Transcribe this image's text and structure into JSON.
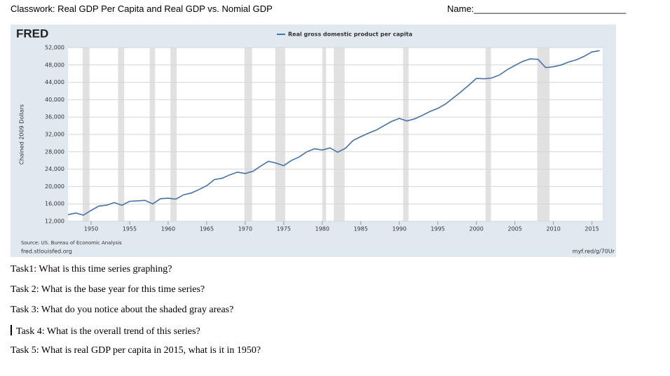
{
  "header": {
    "title": "Classwork: Real GDP Per Capita and Real GDP vs. Nomial GDP",
    "name_label": "Name:______________________________"
  },
  "chart_data": {
    "type": "line",
    "logo": "FRED",
    "ylabel": "Chained 2009 Dollars",
    "source": "Source: US. Bureau of Economic Analysis",
    "site": "fred.stlouisfed.org",
    "link": "myf.red/g/70Ur",
    "x": [
      1947,
      1948,
      1949,
      1950,
      1951,
      1952,
      1953,
      1954,
      1955,
      1956,
      1957,
      1958,
      1959,
      1960,
      1961,
      1962,
      1963,
      1964,
      1965,
      1966,
      1967,
      1968,
      1969,
      1970,
      1971,
      1972,
      1973,
      1974,
      1975,
      1976,
      1977,
      1978,
      1979,
      1980,
      1981,
      1982,
      1983,
      1984,
      1985,
      1986,
      1987,
      1988,
      1989,
      1990,
      1991,
      1992,
      1993,
      1994,
      1995,
      1996,
      1997,
      1998,
      1999,
      2000,
      2001,
      2002,
      2003,
      2004,
      2005,
      2006,
      2007,
      2008,
      2009,
      2010,
      2011,
      2012,
      2013,
      2014,
      2015,
      2016
    ],
    "series": [
      {
        "name": "Real gross domestic product per capita",
        "color": "#4572a7",
        "values": [
          13500,
          13900,
          13400,
          14500,
          15500,
          15700,
          16300,
          15700,
          16600,
          16700,
          16800,
          16000,
          17200,
          17300,
          17100,
          18100,
          18500,
          19300,
          20200,
          21600,
          21900,
          22700,
          23300,
          23000,
          23500,
          24700,
          25800,
          25400,
          24800,
          26000,
          26800,
          28000,
          28700,
          28400,
          28900,
          27900,
          28800,
          30600,
          31500,
          32300,
          33000,
          34000,
          35000,
          35700,
          35100,
          35600,
          36400,
          37300,
          38000,
          39000,
          40400,
          41800,
          43300,
          44900,
          44800,
          45000,
          45700,
          46900,
          47900,
          48800,
          49400,
          49300,
          47400,
          47600,
          48000,
          48700,
          49200,
          50000,
          51000,
          51300
        ]
      }
    ],
    "recessions": [
      [
        1948.9,
        1949.8
      ],
      [
        1953.5,
        1954.3
      ],
      [
        1957.6,
        1958.3
      ],
      [
        1960.3,
        1961.1
      ],
      [
        1969.9,
        1970.9
      ],
      [
        1973.9,
        1975.2
      ],
      [
        1980.0,
        1980.5
      ],
      [
        1981.5,
        1982.9
      ],
      [
        1990.5,
        1991.2
      ],
      [
        2001.2,
        2001.9
      ],
      [
        2007.9,
        2009.5
      ]
    ],
    "xlim": [
      1947,
      2016.4
    ],
    "ylim": [
      12000,
      52000
    ],
    "xticks": [
      1950,
      1955,
      1960,
      1965,
      1970,
      1975,
      1980,
      1985,
      1990,
      1995,
      2000,
      2005,
      2010,
      2015
    ],
    "yticks": [
      {
        "value": 12000,
        "label": "12,000"
      },
      {
        "value": 16000,
        "label": "16,000"
      },
      {
        "value": 20000,
        "label": "20,000"
      },
      {
        "value": 24000,
        "label": "24,000"
      },
      {
        "value": 28000,
        "label": "28,000"
      },
      {
        "value": 32000,
        "label": "32,000"
      },
      {
        "value": 36000,
        "label": "36,000"
      },
      {
        "value": 40000,
        "label": "40,000"
      },
      {
        "value": 44000,
        "label": "44,000"
      },
      {
        "value": 48000,
        "label": "48,000"
      },
      {
        "value": 52000,
        "label": "52,000"
      }
    ],
    "grid": true
  },
  "tasks": [
    "Task1: What is this time series graphing?",
    "Task 2: What is the base year for this time series?",
    "Task 3: What do you notice about the shaded gray areas?",
    "Task 4: What is the overall trend of this series?",
    "Task 5: What is real GDP per capita in 2015, what is it in 1950?"
  ]
}
